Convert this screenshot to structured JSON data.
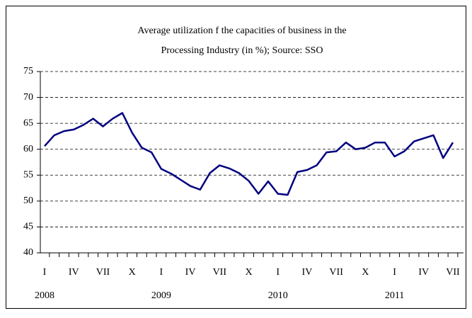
{
  "chart_data": {
    "type": "line",
    "title": [
      "Average utilization f the capacities of business in the",
      "Processing Industry (in %); Source: SSO"
    ],
    "categories": [
      "I",
      null,
      null,
      "IV",
      null,
      null,
      "VII",
      null,
      null,
      "X",
      null,
      null,
      "I",
      null,
      null,
      "IV",
      null,
      null,
      "VII",
      null,
      null,
      "X",
      null,
      null,
      "I",
      null,
      null,
      "IV",
      null,
      null,
      "VII",
      null,
      null,
      "X",
      null,
      null,
      "I",
      null,
      null,
      "IV",
      null,
      null,
      "VII"
    ],
    "years": [
      "2008",
      null,
      null,
      null,
      null,
      null,
      null,
      null,
      null,
      null,
      null,
      null,
      "2009",
      null,
      null,
      null,
      null,
      null,
      null,
      null,
      null,
      null,
      null,
      null,
      "2010",
      null,
      null,
      null,
      null,
      null,
      null,
      null,
      null,
      null,
      null,
      null,
      "2011",
      null,
      null,
      null,
      null,
      null,
      null
    ],
    "series": [
      {
        "color": "#000080",
        "values": [
          60.6,
          62.7,
          63.5,
          63.8,
          64.7,
          65.9,
          64.4,
          65.9,
          67.0,
          63.2,
          60.3,
          59.4,
          56.2,
          55.3,
          54.1,
          52.9,
          52.2,
          55.4,
          56.9,
          56.3,
          55.4,
          53.9,
          51.4,
          53.8,
          51.4,
          51.2,
          55.6,
          56.0,
          56.9,
          59.4,
          59.6,
          61.3,
          60.0,
          60.3,
          61.3,
          61.3,
          58.6,
          59.6,
          61.5,
          62.1,
          62.7,
          58.3,
          61.3
        ]
      }
    ],
    "ylim": [
      40,
      75
    ],
    "yticks": [
      40,
      45,
      50,
      55,
      60,
      65,
      70,
      75
    ],
    "grid": true
  }
}
